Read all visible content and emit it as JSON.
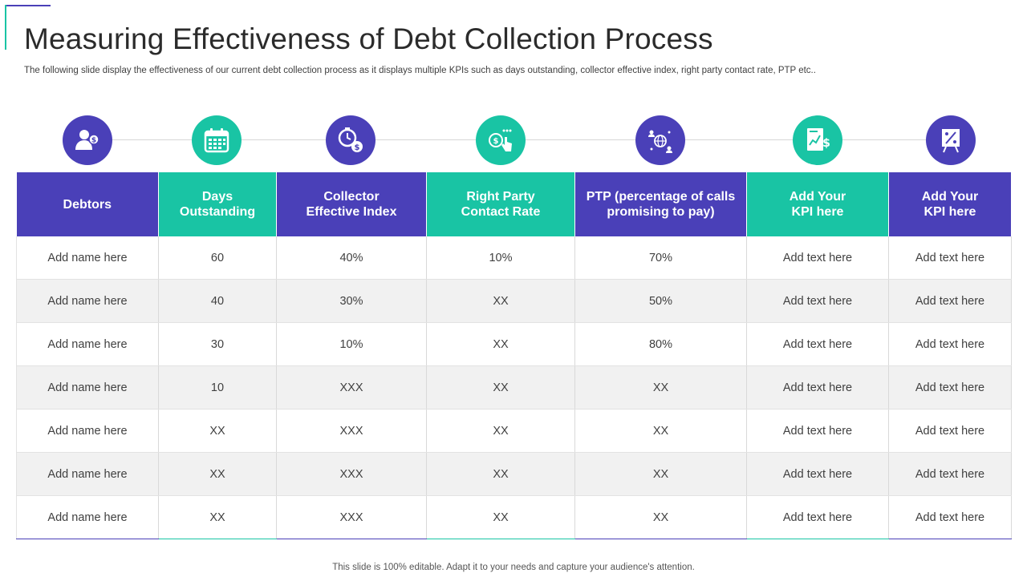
{
  "title": "Measuring Effectiveness of Debt Collection Process",
  "subtitle": "The following slide display the effectiveness of our current debt collection process as it displays multiple KPIs such as days outstanding, collector effective index, right party contact rate, PTP etc..",
  "colors": {
    "purple": "#4a40b8",
    "teal": "#19c4a4"
  },
  "icons": [
    "debtor-user-dollar-icon",
    "calendar-icon",
    "stopwatch-dollar-icon",
    "coin-touch-icon",
    "globe-network-icon",
    "financial-report-icon",
    "presentation-board-icon"
  ],
  "table": {
    "headers": [
      "Debtors",
      "Days\nOutstanding",
      "Collector\nEffective Index",
      "Right Party\nContact Rate",
      "PTP (percentage of calls\npromising to pay)",
      "Add Your\nKPI here",
      "Add Your\nKPI here"
    ],
    "rows": [
      [
        "Add name here",
        "60",
        "40%",
        "10%",
        "70%",
        "Add text here",
        "Add text here"
      ],
      [
        "Add name here",
        "40",
        "30%",
        "XX",
        "50%",
        "Add text here",
        "Add text here"
      ],
      [
        "Add name here",
        "30",
        "10%",
        "XX",
        "80%",
        "Add text here",
        "Add text here"
      ],
      [
        "Add name here",
        "10",
        "XXX",
        "XX",
        "XX",
        "Add text here",
        "Add text here"
      ],
      [
        "Add name here",
        "XX",
        "XXX",
        "XX",
        "XX",
        "Add text here",
        "Add text here"
      ],
      [
        "Add name here",
        "XX",
        "XXX",
        "XX",
        "XX",
        "Add text here",
        "Add text here"
      ],
      [
        "Add name here",
        "XX",
        "XXX",
        "XX",
        "XX",
        "Add text here",
        "Add text here"
      ]
    ]
  },
  "footer": "This slide is 100% editable. Adapt it to your needs and capture your audience's attention."
}
